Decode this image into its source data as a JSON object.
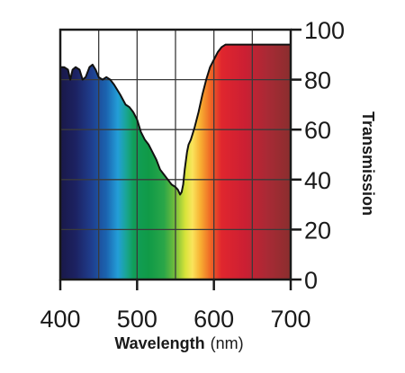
{
  "chart_data": {
    "type": "area",
    "title": "",
    "xlabel": "Wavelength",
    "xunit": "(nm)",
    "ylabel": "Transmission",
    "xlim": [
      400,
      700
    ],
    "ylim": [
      0,
      100
    ],
    "xticks": [
      400,
      500,
      600,
      700
    ],
    "xtick_labels": [
      "400",
      "500",
      "600",
      "700"
    ],
    "yticks": [
      0,
      20,
      40,
      60,
      80,
      100
    ],
    "ytick_labels": [
      "0",
      "20",
      "40",
      "60",
      "80",
      "100"
    ],
    "grid": true,
    "legend": "none",
    "fill": "visible spectrum gradient (violet to red)",
    "series": [
      {
        "x": [
          400,
          405,
          410,
          413,
          416,
          420,
          425,
          429,
          433,
          438,
          442,
          446,
          450,
          455,
          460,
          465,
          470,
          478,
          485,
          490,
          495,
          500,
          505,
          510,
          515,
          520,
          525,
          530,
          535,
          540,
          545,
          550,
          553,
          556,
          558,
          560,
          562,
          565,
          567,
          570,
          575,
          580,
          585,
          590,
          595,
          600,
          605,
          610,
          615,
          620,
          625,
          630,
          640,
          650,
          660,
          670,
          680,
          690,
          700
        ],
        "y": [
          85,
          85,
          84,
          80,
          84,
          85,
          84,
          80,
          81,
          85,
          86,
          84,
          81,
          80,
          81,
          80,
          78,
          74,
          70,
          69,
          67,
          64,
          59,
          56,
          54,
          51,
          48,
          44,
          42,
          40,
          38,
          37,
          36,
          34,
          35,
          38,
          44,
          51,
          54,
          56,
          61,
          67,
          74,
          80,
          85,
          88,
          91,
          93,
          94,
          94,
          94,
          94,
          94,
          94,
          94,
          94,
          94,
          94,
          94
        ]
      }
    ]
  },
  "colors": {
    "axis": "#1a1a1a",
    "grid": "#3a3a3a",
    "curve": "#111111",
    "spectrum": [
      {
        "nm": 400,
        "color": "#191848"
      },
      {
        "nm": 420,
        "color": "#1c2262"
      },
      {
        "nm": 440,
        "color": "#1f3d8c"
      },
      {
        "nm": 460,
        "color": "#1b64b0"
      },
      {
        "nm": 475,
        "color": "#239ed8"
      },
      {
        "nm": 485,
        "color": "#1aa59a"
      },
      {
        "nm": 495,
        "color": "#119f5a"
      },
      {
        "nm": 515,
        "color": "#109a47"
      },
      {
        "nm": 535,
        "color": "#2aa648"
      },
      {
        "nm": 550,
        "color": "#78be3b"
      },
      {
        "nm": 563,
        "color": "#d8e43a"
      },
      {
        "nm": 572,
        "color": "#fae45c"
      },
      {
        "nm": 582,
        "color": "#f8b233"
      },
      {
        "nm": 595,
        "color": "#ef6a25"
      },
      {
        "nm": 610,
        "color": "#e0262e"
      },
      {
        "nm": 640,
        "color": "#cc1f33"
      },
      {
        "nm": 670,
        "color": "#a82a35"
      },
      {
        "nm": 700,
        "color": "#8a2e2e"
      }
    ]
  }
}
